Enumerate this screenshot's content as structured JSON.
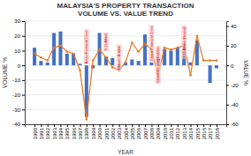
{
  "chart_data": {
    "type": "bar",
    "title": "MALAYSIA'S PROPERTY TRANSACTION",
    "subtitle": "VOLUME VS. VALUE TREND",
    "xlabel": "YEAR",
    "ylabel": "VOLUME %",
    "y2label": "VALUE %",
    "x": [
      1990,
      1991,
      1992,
      1993,
      1994,
      1995,
      1996,
      1997,
      1998,
      1999,
      2000,
      2001,
      2002,
      2003,
      2004,
      2005,
      2006,
      2007,
      2008,
      2009,
      2010,
      2011,
      2012,
      2013,
      2014,
      2015,
      2016,
      2017,
      2018
    ],
    "series": [
      {
        "type": "bar",
        "color": "#4472c4",
        "values": [
          12,
          3,
          2,
          22,
          23,
          8,
          8,
          1,
          -35,
          -2,
          22,
          6,
          5,
          -2,
          2,
          4,
          3,
          21,
          2,
          5,
          11,
          10,
          12,
          15,
          2,
          17,
          0,
          -12,
          -2
        ]
      },
      {
        "type": "line",
        "color": "#e87722",
        "marker": "circle",
        "axis": "y2",
        "values": [
          12,
          8,
          5,
          18,
          20,
          14,
          12,
          -5,
          -55,
          5,
          16,
          8,
          -2,
          -5,
          3,
          23,
          14,
          22,
          16,
          -10,
          18,
          16,
          18,
          20,
          -10,
          30,
          5,
          5,
          5
        ]
      }
    ],
    "xlim": [
      1988.5,
      2019.5
    ],
    "xticks": [
      1990,
      1991,
      1992,
      1993,
      1994,
      1995,
      1996,
      1997,
      1998,
      1999,
      2000,
      2001,
      2002,
      2003,
      2004,
      2005,
      2006,
      2007,
      2008,
      2009,
      2010,
      2011,
      2012,
      2013,
      2014,
      2015,
      2016,
      2017,
      2018
    ],
    "ylim": [
      -40,
      30
    ],
    "yticks": [
      -40,
      -30,
      -20,
      -10,
      0,
      10,
      20,
      30
    ],
    "y2lim": [
      -60,
      45
    ],
    "y2ticks": [
      -60,
      -40,
      -20,
      0,
      20,
      40
    ],
    "grid": true,
    "annotations": [
      {
        "text": "Asian Financial Crisis",
        "x": 1998,
        "y": 24
      },
      {
        "text": "9-11 Attack",
        "x": 2001,
        "y": 10
      },
      {
        "text": "Dotcom Bubble",
        "x": 2003,
        "y": -3
      },
      {
        "text": "Global Financial Crisis",
        "x": 2008,
        "y": 3
      },
      {
        "text": "Global Housing Bubble",
        "x": 2009,
        "y": -12
      },
      {
        "text": "9-11 Attack (Revisit)",
        "x": 2013,
        "y": 5
      }
    ]
  }
}
